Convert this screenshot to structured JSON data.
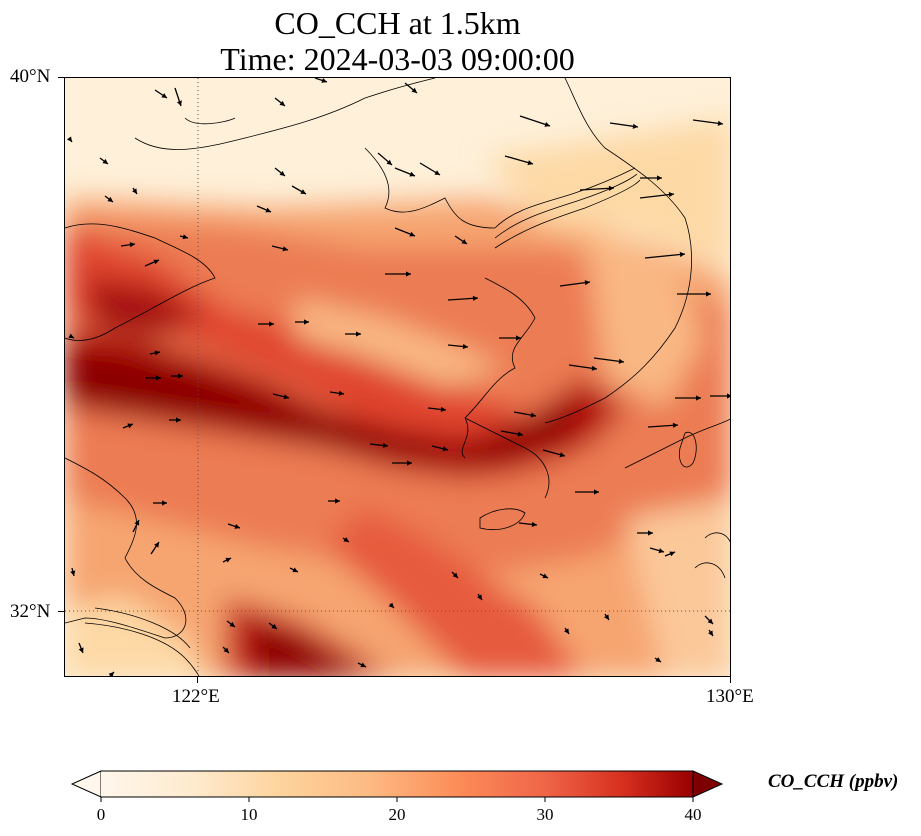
{
  "title_line1": "CO_CCH at 1.5km",
  "title_line2": "Time: 2024-03-03 09:00:00",
  "map": {
    "extent": {
      "lon_min": 120.0,
      "lon_max": 130.0,
      "lat_min": 31.0,
      "lat_max": 40.0
    },
    "lat_labels": [
      "40°N",
      "32°N"
    ],
    "lon_labels": [
      "122°E",
      "130°E"
    ],
    "gridlines": {
      "lon": 122,
      "lat": 32
    }
  },
  "colorbar": {
    "label": "CO_CCH (ppbv)",
    "min": 0,
    "max": 40,
    "ticks": [
      "0",
      "10",
      "20",
      "30",
      "40"
    ],
    "extend": "both",
    "colormap": "OrRd"
  },
  "chart_data": {
    "type": "heatmap",
    "variable": "CO_CCH",
    "units": "ppbv",
    "x_range": [
      120,
      130
    ],
    "y_range": [
      31,
      40
    ],
    "approx_field": "High concentrations (>35 ppbv) in a band from the Shandong peninsula coast (~36°N) eastward to SW Korea (~34.5°N, 127°E) and a second maximum near 31.5°N, 123°E; low values (<10 ppbv) in the Bohai Sea region and far northeast."
  }
}
